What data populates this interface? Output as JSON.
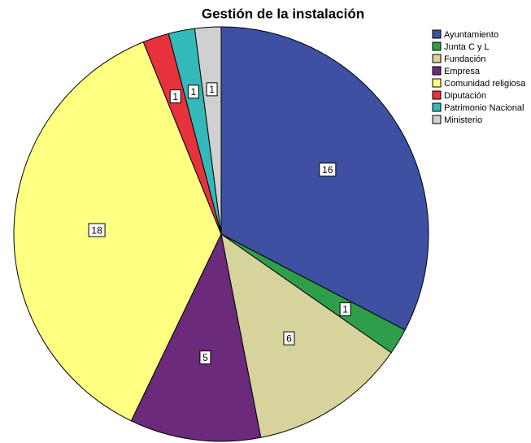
{
  "chart_data": {
    "type": "pie",
    "title": "Gestión de la instalación",
    "categories": [
      "Ayuntamiento",
      "Junta C y L",
      "Fundación",
      "Empresa",
      "Comunidad religiosa",
      "Diputación",
      "Patrimonio Nacional",
      "Ministerio"
    ],
    "values": [
      16,
      1,
      6,
      5,
      18,
      1,
      1,
      1
    ],
    "colors": [
      "#3f4fa2",
      "#2f9e4a",
      "#d6d39c",
      "#6b2a7b",
      "#ffff82",
      "#e6323c",
      "#33b9b9",
      "#d0d0d0"
    ],
    "legend": "right"
  }
}
